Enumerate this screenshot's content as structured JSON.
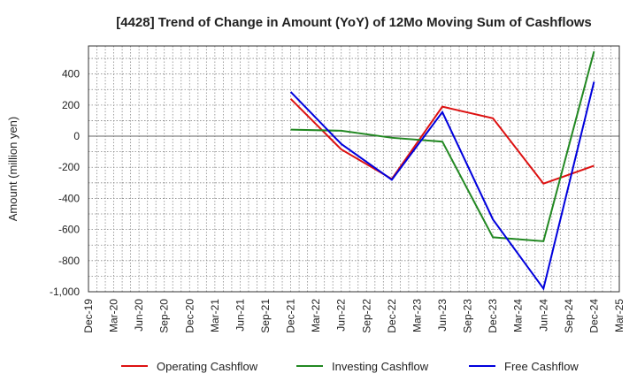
{
  "chart_data": {
    "type": "line",
    "title": "[4428]  Trend of Change in Amount (YoY) of 12Mo Moving Sum of Cashflows",
    "xlabel": "",
    "ylabel": "Amount (million yen)",
    "ylim": [
      -1000,
      580
    ],
    "yticks": [
      400,
      200,
      0,
      -200,
      -400,
      -600,
      -800,
      -1000
    ],
    "ytick_labels": [
      "400",
      "200",
      "0",
      "-200",
      "-400",
      "-600",
      "-800",
      "-1,000"
    ],
    "categories": [
      "Dec-19",
      "Mar-20",
      "Jun-20",
      "Sep-20",
      "Dec-20",
      "Mar-21",
      "Jun-21",
      "Sep-21",
      "Dec-21",
      "Mar-22",
      "Jun-22",
      "Sep-22",
      "Dec-22",
      "Mar-23",
      "Jun-23",
      "Sep-23",
      "Dec-23",
      "Mar-24",
      "Jun-24",
      "Sep-24",
      "Dec-24",
      "Mar-25"
    ],
    "grid": true,
    "legend_position": "bottom",
    "series": [
      {
        "name": "Operating Cashflow",
        "color": "#dd1111",
        "points": [
          [
            "Dec-21",
            240
          ],
          [
            "Jun-22",
            -85
          ],
          [
            "Dec-22",
            -275
          ],
          [
            "Jun-23",
            190
          ],
          [
            "Dec-23",
            115
          ],
          [
            "Jun-24",
            -305
          ],
          [
            "Dec-24",
            -190
          ]
        ]
      },
      {
        "name": "Investing Cashflow",
        "color": "#228822",
        "points": [
          [
            "Dec-21",
            42
          ],
          [
            "Jun-22",
            35
          ],
          [
            "Dec-22",
            -10
          ],
          [
            "Jun-23",
            -35
          ],
          [
            "Dec-23",
            -650
          ],
          [
            "Jun-24",
            -675
          ],
          [
            "Dec-24",
            545
          ]
        ]
      },
      {
        "name": "Free Cashflow",
        "color": "#0000dd",
        "points": [
          [
            "Dec-21",
            285
          ],
          [
            "Jun-22",
            -50
          ],
          [
            "Dec-22",
            -280
          ],
          [
            "Jun-23",
            155
          ],
          [
            "Dec-23",
            -535
          ],
          [
            "Jun-24",
            -980
          ],
          [
            "Dec-24",
            350
          ]
        ]
      }
    ]
  }
}
